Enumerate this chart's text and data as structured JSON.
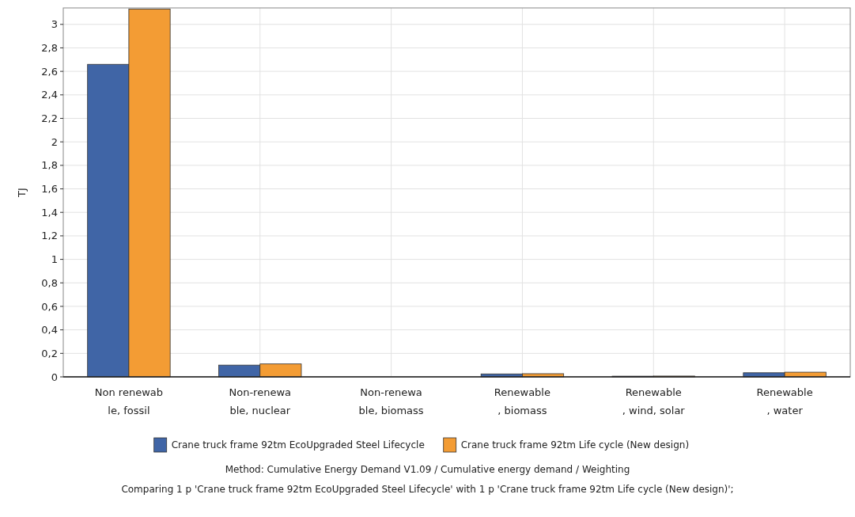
{
  "chart_data": {
    "type": "bar",
    "ylabel": "TJ",
    "categories": [
      "Non renewab\nle, fossil",
      "Non-renewa\nble, nuclear",
      "Non-renewa\nble, biomass",
      "Renewable\n, biomass",
      "Renewable\n, wind, solar",
      "Renewable\n, water"
    ],
    "series": [
      {
        "name": "Crane truck frame 92tm EcoUpgraded Steel Lifecycle",
        "color": "#4065a6",
        "values": [
          2.66,
          0.1,
          null,
          0.025,
          0.006,
          0.035
        ]
      },
      {
        "name": "Crane truck frame 92tm Life cycle (New design)",
        "color": "#f39c34",
        "values": [
          3.13,
          0.11,
          null,
          0.027,
          0.007,
          0.04
        ]
      }
    ],
    "ylim": [
      0,
      3.14
    ],
    "yticks": [
      0,
      {
        "value": 0.2,
        "label": "0,2"
      },
      {
        "value": 0.4,
        "label": "0,4"
      },
      {
        "value": 0.6,
        "label": "0,6"
      },
      {
        "value": 0.8,
        "label": "0,8"
      },
      1,
      {
        "value": 1.2,
        "label": "1,2"
      },
      {
        "value": 1.4,
        "label": "1,4"
      },
      {
        "value": 1.6,
        "label": "1,6"
      },
      {
        "value": 1.8,
        "label": "1,8"
      },
      2,
      {
        "value": 2.2,
        "label": "2,2"
      },
      {
        "value": 2.4,
        "label": "2,4"
      },
      {
        "value": 2.6,
        "label": "2,6"
      },
      {
        "value": 2.8,
        "label": "2,8"
      },
      3
    ],
    "grid": true,
    "legend": "bottom",
    "annotations": [
      "Method: Cumulative Energy Demand V1.09 / Cumulative energy demand / Weighting",
      "Comparing 1 p 'Crane truck frame 92tm EcoUpgraded Steel Lifecycle' with 1 p 'Crane truck frame 92tm Life cycle (New design)';"
    ]
  }
}
